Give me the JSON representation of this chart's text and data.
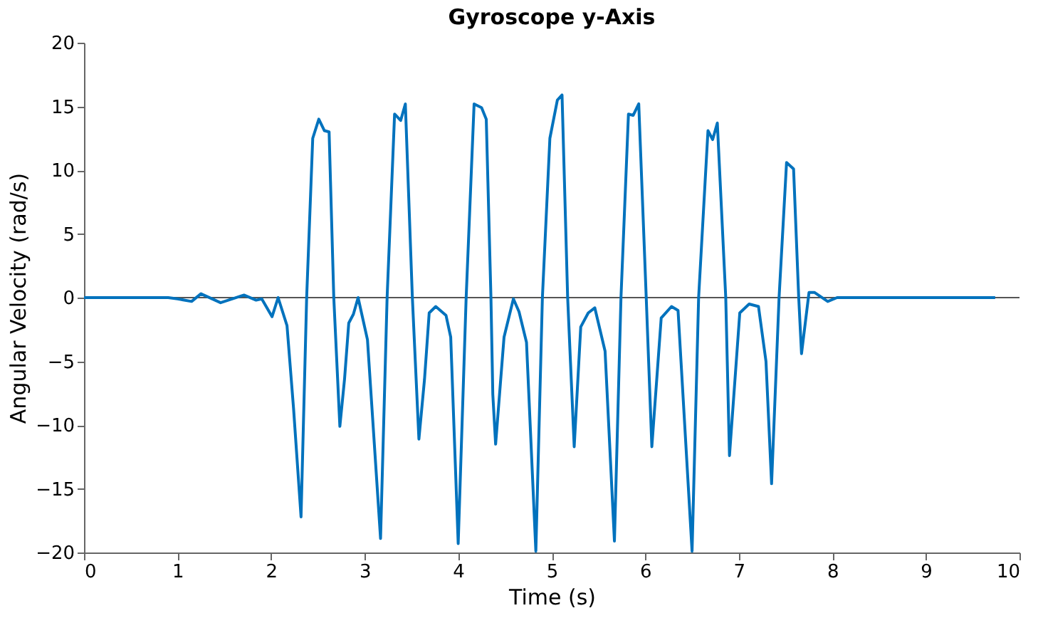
{
  "chart_data": {
    "type": "line",
    "title": "Gyroscope y-Axis",
    "xlabel": "Time (s)",
    "ylabel": "Angular Velocity (rad/s)",
    "x": [
      0,
      0.9,
      1.0,
      1.15,
      1.25,
      1.46,
      1.71,
      1.84,
      1.9,
      2.01,
      2.075,
      2.17,
      2.24,
      2.32,
      2.38,
      2.445,
      2.51,
      2.57,
      2.62,
      2.67,
      2.735,
      2.785,
      2.83,
      2.88,
      2.93,
      3.03,
      3.17,
      3.24,
      3.32,
      3.385,
      3.435,
      3.51,
      3.58,
      3.64,
      3.69,
      3.76,
      3.87,
      3.92,
      4.0,
      4.085,
      4.17,
      4.25,
      4.3,
      4.35,
      4.37,
      4.4,
      4.49,
      4.59,
      4.65,
      4.73,
      4.83,
      4.9,
      4.98,
      5.06,
      5.11,
      5.17,
      5.24,
      5.31,
      5.39,
      5.46,
      5.57,
      5.67,
      5.74,
      5.82,
      5.87,
      5.93,
      6.01,
      6.07,
      6.17,
      6.28,
      6.35,
      6.5,
      6.57,
      6.67,
      6.72,
      6.77,
      6.86,
      6.9,
      7.01,
      7.11,
      7.21,
      7.29,
      7.35,
      7.43,
      7.51,
      7.585,
      7.64,
      7.67,
      7.75,
      7.81,
      7.95,
      8.05,
      9.74
    ],
    "series": [
      {
        "color": "#0072bd",
        "values": [
          0,
          0,
          -0.1,
          -0.3,
          0.3,
          -0.4,
          0.2,
          -0.2,
          -0.1,
          -1.5,
          0,
          -2.2,
          -8.7,
          -17.2,
          0,
          12.5,
          14.0,
          13.1,
          13.0,
          0,
          -10.1,
          -6.4,
          -2.0,
          -1.3,
          0,
          -3.3,
          -18.9,
          0,
          14.4,
          13.9,
          15.2,
          0,
          -11.1,
          -6.4,
          -1.2,
          -0.7,
          -1.4,
          -3.1,
          -19.3,
          0,
          15.2,
          14.9,
          14.0,
          0,
          -7.6,
          -11.5,
          -3.1,
          -0.1,
          -1.1,
          -3.5,
          -19.9,
          0,
          12.5,
          15.5,
          15.9,
          0,
          -11.7,
          -2.3,
          -1.2,
          -0.8,
          -4.2,
          -19.1,
          0,
          14.4,
          14.3,
          15.2,
          0,
          -11.7,
          -1.6,
          -0.7,
          -1.0,
          -19.9,
          0,
          13.1,
          12.4,
          13.7,
          0,
          -12.4,
          -1.2,
          -0.5,
          -0.7,
          -5.0,
          -14.6,
          0,
          10.6,
          10.1,
          0,
          -4.4,
          0.4,
          0.4,
          -0.3,
          0,
          0
        ]
      }
    ],
    "xlim": [
      0,
      10
    ],
    "xticks": [
      0,
      1,
      2,
      3,
      4,
      5,
      6,
      7,
      8,
      9,
      10
    ],
    "ylim": [
      -20,
      20
    ],
    "yticks": [
      -20,
      -15,
      -10,
      -5,
      0,
      5,
      10,
      15,
      20
    ],
    "ref_lines": [
      {
        "axis": "y",
        "value": 0,
        "color": "#555555"
      }
    ],
    "grid": false,
    "line_style": "solid",
    "marker": "none"
  }
}
